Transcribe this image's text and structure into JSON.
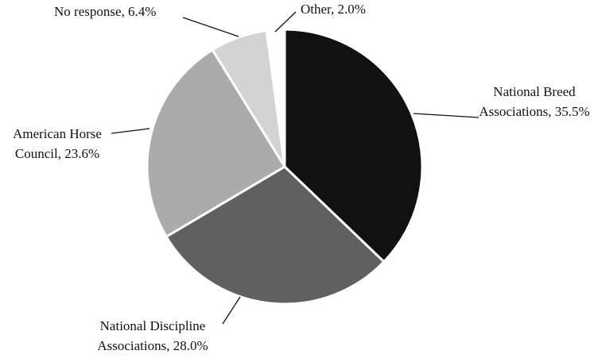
{
  "chart_data": {
    "type": "pie",
    "values": [
      35.5,
      28.0,
      23.6,
      6.4,
      2.0
    ],
    "value_labels": [
      [
        "National Breed",
        "Associations, 35.5%"
      ],
      [
        "National Discipline",
        "Associations, 28.0%"
      ],
      [
        "American Horse",
        "Council, 23.6%"
      ],
      [
        "No response, 6.4%"
      ],
      [
        "Other, 2.0%"
      ]
    ],
    "colors": [
      "#111111",
      "#606060",
      "#ababab",
      "#d3d3d3",
      "#ffffff"
    ]
  }
}
